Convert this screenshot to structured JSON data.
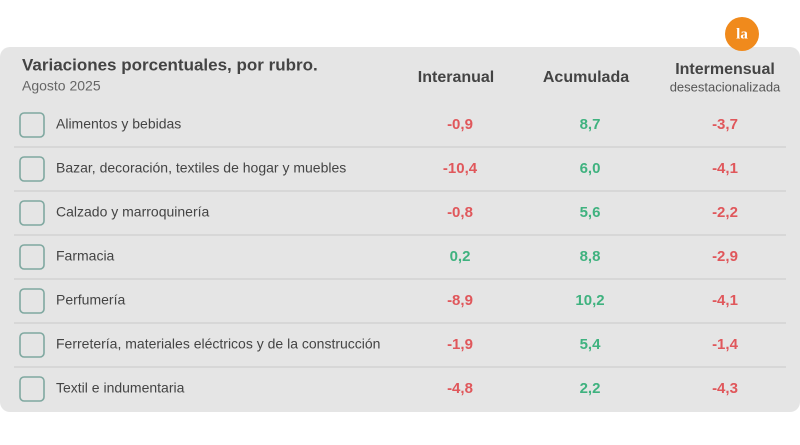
{
  "logo": "la",
  "header": {
    "title": "Variaciones porcentuales, por rubro.",
    "subtitle": "Agosto 2025"
  },
  "table": {
    "columns": [
      "Interanual",
      "Acumulada",
      "Intermensual",
      "desestacionalizada"
    ],
    "rows": [
      [
        "Alimentos y bebidas",
        "-0,9",
        "8,7",
        "-3,7"
      ],
      [
        "Bazar, decoración, textiles de hogar y muebles",
        "-10,4",
        "6,0",
        "-4,1"
      ],
      [
        "Calzado y marroquinería",
        "-0,8",
        "5,6",
        "-2,2"
      ],
      [
        "Farmacia",
        "0,2",
        "8,8",
        "-2,9"
      ],
      [
        "Perfumería",
        "-8,9",
        "10,2",
        "-4,1"
      ],
      [
        "Ferretería, materiales eléctricos y de la construcción",
        "-1,9",
        "5,4",
        "-1,4"
      ],
      [
        "Textil e indumentaria",
        "-4,8",
        "2,2",
        "-4,3"
      ]
    ]
  }
}
